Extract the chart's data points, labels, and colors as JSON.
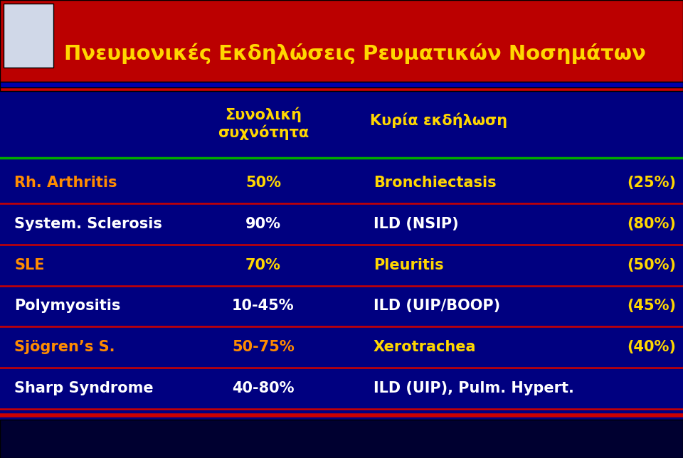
{
  "title": "Πνευμονικές Εκδηλώσεις Ρευματικών Νοσημάτων",
  "col_header_1": "Συνολική\nσυχνότητα",
  "col_header_2": "Κυρία εκδήλωση",
  "rows": [
    {
      "disease": "Rh. Arthritis",
      "disease_color": "#FF8C00",
      "freq": "50%",
      "freq_color": "#FFD700",
      "main": "Bronchiectasis",
      "main_color": "#FFD700",
      "pct": "(25%)",
      "pct_color": "#FFD700"
    },
    {
      "disease": "System. Sclerosis",
      "disease_color": "#FFFFFF",
      "freq": "90%",
      "freq_color": "#FFFFFF",
      "main": "ILD (NSIP)",
      "main_color": "#FFFFFF",
      "pct": "(80%)",
      "pct_color": "#FFD700"
    },
    {
      "disease": "SLE",
      "disease_color": "#FF8C00",
      "freq": "70%",
      "freq_color": "#FFD700",
      "main": "Pleuritis",
      "main_color": "#FFD700",
      "pct": "(50%)",
      "pct_color": "#FFD700"
    },
    {
      "disease": "Polymyositis",
      "disease_color": "#FFFFFF",
      "freq": "10-45%",
      "freq_color": "#FFFFFF",
      "main": "ILD (UIP/BOOP)",
      "main_color": "#FFFFFF",
      "pct": "(45%)",
      "pct_color": "#FFD700"
    },
    {
      "disease": "Sjögren’s S.",
      "disease_color": "#FF8C00",
      "freq": "50-75%",
      "freq_color": "#FF8C00",
      "main": "Xerotrachea",
      "main_color": "#FFD700",
      "pct": "(40%)",
      "pct_color": "#FFD700"
    },
    {
      "disease": "Sharp Syndrome",
      "disease_color": "#FFFFFF",
      "freq": "40-80%",
      "freq_color": "#FFFFFF",
      "main": "ILD (UIP), Pulm. Hypert.",
      "main_color": "#FFFFFF",
      "pct": "",
      "pct_color": "#FFFFFF"
    }
  ],
  "bg_color": "#000080",
  "title_bg_color": "#BB0000",
  "title_color": "#FFD700",
  "header_color": "#FFD700",
  "divider_green": "#00AA00",
  "divider_red": "#CC0000",
  "bottom_bar_color": "#000030",
  "blue_stripe_color": "#0000AA",
  "logo_bg": "#D0D8E8"
}
